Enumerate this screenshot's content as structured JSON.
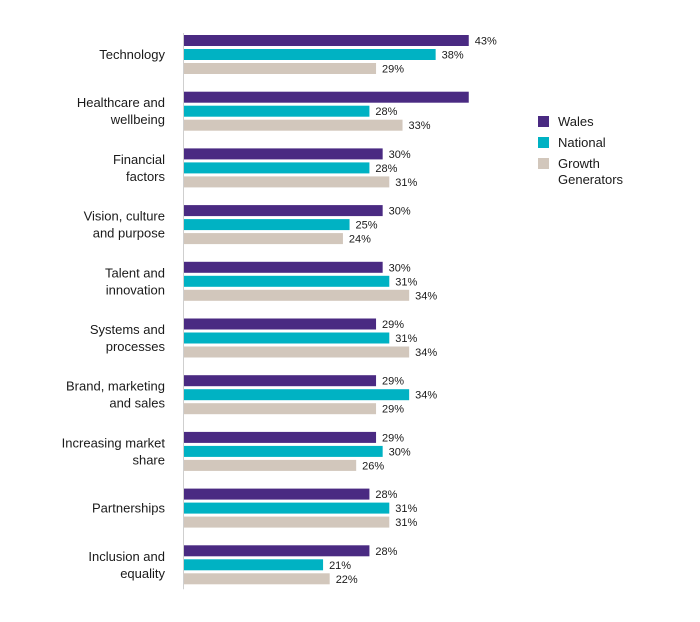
{
  "chart_data": {
    "type": "bar",
    "orientation": "horizontal",
    "categories": [
      [
        "Technology"
      ],
      [
        "Healthcare and",
        "wellbeing"
      ],
      [
        "Financial",
        "factors"
      ],
      [
        "Vision, culture",
        "and purpose"
      ],
      [
        "Talent and",
        "innovation"
      ],
      [
        "Systems and",
        "processes"
      ],
      [
        "Brand, marketing",
        "and sales"
      ],
      [
        "Increasing market",
        "share"
      ],
      [
        "Partnerships"
      ],
      [
        "Inclusion and",
        "equality"
      ]
    ],
    "series": [
      {
        "name": "Wales",
        "color": "#4a2a82",
        "values": [
          43,
          43,
          30,
          30,
          30,
          29,
          29,
          29,
          28,
          28
        ],
        "value_labels": [
          "43%",
          "",
          "30%",
          "30%",
          "30%",
          "29%",
          "29%",
          "29%",
          "28%",
          "28%"
        ]
      },
      {
        "name": "National",
        "color": "#00b2c3",
        "values": [
          38,
          28,
          28,
          25,
          31,
          31,
          34,
          30,
          31,
          21
        ],
        "value_labels": [
          "38%",
          "28%",
          "28%",
          "25%",
          "31%",
          "31%",
          "34%",
          "30%",
          "31%",
          "21%"
        ]
      },
      {
        "name": "Growth Generators",
        "color": "#d2c7bc",
        "values": [
          29,
          33,
          31,
          24,
          34,
          34,
          29,
          26,
          31,
          22
        ],
        "value_labels": [
          "29%",
          "33%",
          "31%",
          "24%",
          "34%",
          "34%",
          "29%",
          "26%",
          "31%",
          "22%"
        ]
      }
    ],
    "legend": {
      "position": "right",
      "entries": [
        [
          "Wales"
        ],
        [
          "National"
        ],
        [
          "Growth",
          "Generators"
        ]
      ]
    },
    "xlim": [
      0,
      45
    ],
    "grid": false,
    "axis_line": true
  }
}
